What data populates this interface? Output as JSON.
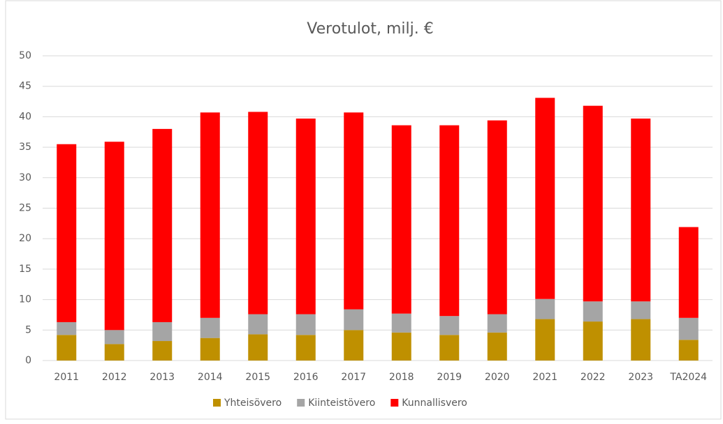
{
  "chart_data": {
    "type": "stacked_bar",
    "title": "Verotulot, milj. €",
    "categories": [
      "2011",
      "2012",
      "2013",
      "2014",
      "2015",
      "2016",
      "2017",
      "2018",
      "2019",
      "2020",
      "2021",
      "2022",
      "2023",
      "TA2024"
    ],
    "series": [
      {
        "name": "Yhteisövero",
        "color": "#bf9000",
        "values": [
          4.2,
          2.7,
          3.2,
          3.7,
          4.3,
          4.2,
          5.0,
          4.6,
          4.2,
          4.6,
          6.8,
          6.4,
          6.8,
          3.4
        ]
      },
      {
        "name": "Kiinteistövero",
        "color": "#a5a5a5",
        "values": [
          2.1,
          2.3,
          3.1,
          3.3,
          3.3,
          3.4,
          3.4,
          3.1,
          3.1,
          3.0,
          3.3,
          3.3,
          2.9,
          3.6
        ]
      },
      {
        "name": "Kunnallisvero",
        "color": "#ff0000",
        "values": [
          29.2,
          30.9,
          31.7,
          33.7,
          33.2,
          32.1,
          32.3,
          30.9,
          31.3,
          31.8,
          33.0,
          32.1,
          30.0,
          14.9
        ]
      }
    ],
    "ylim": [
      0,
      50
    ],
    "yticks": [
      0,
      5,
      10,
      15,
      20,
      25,
      30,
      35,
      40,
      45,
      50
    ],
    "grid": true,
    "legend": "bottom"
  }
}
